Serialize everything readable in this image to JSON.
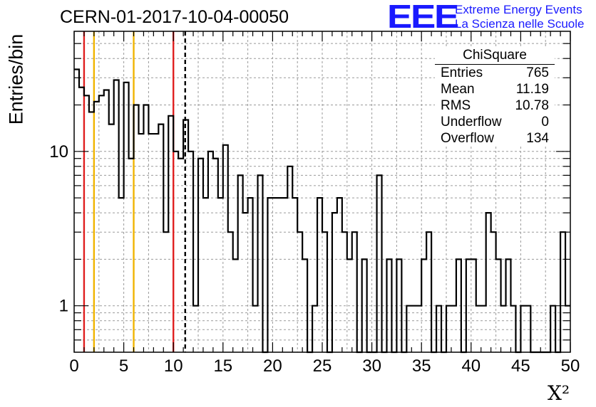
{
  "title": "CERN-01-2017-10-04-00050",
  "logo": {
    "mark": "EEE",
    "line1": "Extreme Energy Events",
    "line2": "La Scienza nelle Scuole",
    "color": "#1a1aff"
  },
  "stats": {
    "name": "ChiSquare",
    "rows": [
      {
        "label": "Entries",
        "value": "765"
      },
      {
        "label": "Mean",
        "value": "11.19"
      },
      {
        "label": "RMS",
        "value": "10.78"
      },
      {
        "label": "Underflow",
        "value": "0"
      },
      {
        "label": "Overflow",
        "value": "134"
      }
    ]
  },
  "chart_data": {
    "type": "histogram",
    "title": "CERN-01-2017-10-04-00050",
    "xlabel": "X²",
    "ylabel": "Entries/bin",
    "xlim": [
      0,
      50
    ],
    "ylim": [
      0.5,
      60
    ],
    "yscale": "log",
    "grid": true,
    "bin_width": 0.5,
    "xticks": [
      0,
      5,
      10,
      15,
      20,
      25,
      30,
      35,
      40,
      45,
      50
    ],
    "yticks": [
      {
        "value": 1,
        "label": "1"
      },
      {
        "value": 10,
        "label": "10"
      }
    ],
    "counts": [
      34,
      26,
      23,
      18,
      21,
      23,
      25,
      15,
      29,
      5,
      28,
      9,
      20,
      13,
      20,
      13,
      13,
      15,
      3,
      17,
      10,
      9,
      16,
      10,
      1,
      9,
      5,
      10,
      9,
      5,
      11,
      3,
      2,
      7,
      4,
      5,
      1,
      7,
      0.5,
      5,
      5,
      5,
      5,
      8,
      5,
      3,
      2,
      0.5,
      1,
      5,
      3,
      0.5,
      4,
      5,
      3,
      2,
      3,
      0.5,
      2,
      0.5,
      0.5,
      7,
      0.5,
      2,
      0.5,
      2,
      0.5,
      1,
      1,
      1,
      2,
      3,
      0.5,
      1,
      0.5,
      1,
      1,
      2,
      0.5,
      2,
      2,
      1,
      1,
      4,
      3,
      2,
      1,
      2,
      1,
      0.5,
      1,
      1,
      0.5,
      0.5,
      0.5,
      0.5,
      1,
      0.5,
      3,
      1
    ],
    "markers": [
      {
        "x": 1,
        "color": "#e02020",
        "style": "solid"
      },
      {
        "x": 2,
        "color": "#f0b400",
        "style": "solid"
      },
      {
        "x": 6,
        "color": "#f0b400",
        "style": "solid"
      },
      {
        "x": 10,
        "color": "#e02020",
        "style": "solid"
      },
      {
        "x": 11.19,
        "color": "#000000",
        "style": "dashed"
      }
    ]
  }
}
